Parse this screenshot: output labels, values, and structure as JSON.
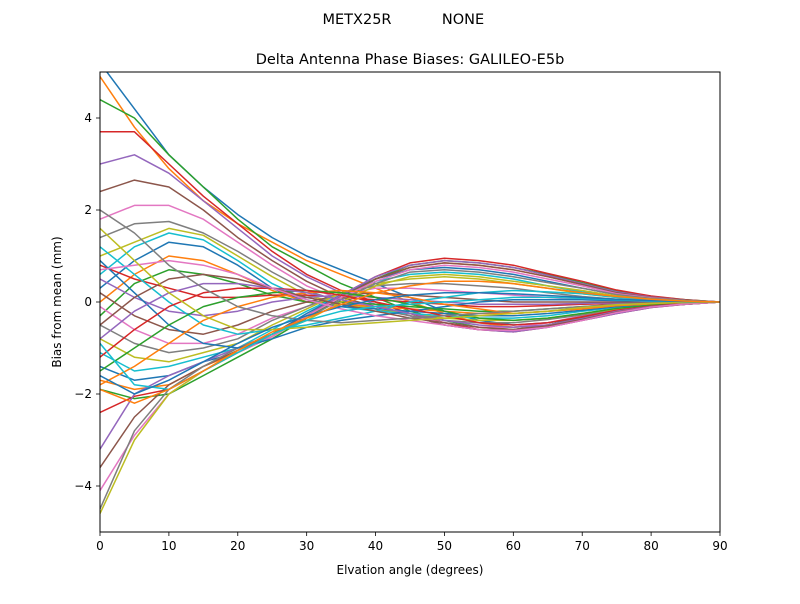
{
  "figure": {
    "suptitle_left": "METX25R",
    "suptitle_right": "NONE"
  },
  "chart_data": {
    "type": "line",
    "title": "Delta Antenna Phase Biases: GALILEO-E5b",
    "xlabel": "Elvation angle (degrees)",
    "ylabel": "Bias from mean (mm)",
    "xlim": [
      0,
      90
    ],
    "ylim": [
      -5,
      5
    ],
    "xticks": [
      0,
      10,
      20,
      30,
      40,
      50,
      60,
      70,
      80,
      90
    ],
    "yticks": [
      -4,
      -2,
      0,
      2,
      4
    ],
    "ytick_labels": [
      "−4",
      "−2",
      "0",
      "2",
      "4"
    ],
    "grid": false,
    "legend": "none",
    "colors": [
      "#1f77b4",
      "#ff7f0e",
      "#2ca02c",
      "#d62728",
      "#9467bd",
      "#8c564b",
      "#e377c2",
      "#7f7f7f",
      "#bcbd22",
      "#17becf"
    ],
    "x": [
      0,
      5,
      10,
      15,
      20,
      25,
      30,
      35,
      40,
      45,
      50,
      55,
      60,
      65,
      70,
      75,
      80,
      85,
      90
    ],
    "series": [
      {
        "values": [
          5.2,
          4.2,
          3.2,
          2.5,
          1.9,
          1.4,
          1.0,
          0.7,
          0.4,
          0.1,
          -0.2,
          -0.4,
          -0.5,
          -0.45,
          -0.35,
          -0.2,
          -0.1,
          -0.05,
          0.0
        ]
      },
      {
        "values": [
          4.9,
          3.8,
          2.9,
          2.2,
          1.7,
          1.3,
          0.9,
          0.6,
          0.3,
          0.0,
          -0.25,
          -0.45,
          -0.55,
          -0.5,
          -0.35,
          -0.2,
          -0.1,
          -0.05,
          0.0
        ]
      },
      {
        "values": [
          4.4,
          4.0,
          3.2,
          2.5,
          1.8,
          1.2,
          0.8,
          0.4,
          0.1,
          -0.2,
          -0.4,
          -0.55,
          -0.6,
          -0.5,
          -0.35,
          -0.2,
          -0.1,
          -0.05,
          0.0
        ]
      },
      {
        "values": [
          3.7,
          3.7,
          3.0,
          2.3,
          1.7,
          1.1,
          0.6,
          0.25,
          0.0,
          -0.25,
          -0.45,
          -0.6,
          -0.65,
          -0.55,
          -0.4,
          -0.25,
          -0.12,
          -0.05,
          0.0
        ]
      },
      {
        "values": [
          3.0,
          3.2,
          2.8,
          2.2,
          1.6,
          1.0,
          0.55,
          0.2,
          -0.05,
          -0.3,
          -0.5,
          -0.6,
          -0.65,
          -0.55,
          -0.4,
          -0.25,
          -0.12,
          -0.05,
          0.0
        ]
      },
      {
        "values": [
          2.4,
          2.65,
          2.5,
          2.0,
          1.4,
          0.9,
          0.45,
          0.1,
          -0.1,
          -0.3,
          -0.5,
          -0.6,
          -0.6,
          -0.5,
          -0.35,
          -0.2,
          -0.1,
          -0.05,
          0.0
        ]
      },
      {
        "values": [
          1.8,
          2.1,
          2.1,
          1.8,
          1.3,
          0.8,
          0.35,
          0.05,
          -0.15,
          -0.3,
          -0.45,
          -0.55,
          -0.55,
          -0.45,
          -0.3,
          -0.18,
          -0.1,
          -0.05,
          0.0
        ]
      },
      {
        "values": [
          1.4,
          1.7,
          1.75,
          1.5,
          1.1,
          0.65,
          0.25,
          0.0,
          -0.15,
          -0.3,
          -0.4,
          -0.45,
          -0.45,
          -0.38,
          -0.28,
          -0.15,
          -0.08,
          -0.03,
          0.0
        ]
      },
      {
        "values": [
          1.0,
          1.3,
          1.6,
          1.45,
          1.0,
          0.55,
          0.15,
          -0.05,
          -0.15,
          -0.25,
          -0.35,
          -0.4,
          -0.4,
          -0.35,
          -0.25,
          -0.15,
          -0.08,
          -0.03,
          0.0
        ]
      },
      {
        "values": [
          0.6,
          1.2,
          1.5,
          1.35,
          0.9,
          0.4,
          0.05,
          -0.1,
          -0.2,
          -0.25,
          -0.3,
          -0.35,
          -0.35,
          -0.3,
          -0.2,
          -0.12,
          -0.06,
          -0.02,
          0.0
        ]
      },
      {
        "values": [
          0.3,
          0.9,
          1.3,
          1.2,
          0.8,
          0.3,
          0.0,
          -0.1,
          -0.15,
          -0.2,
          -0.25,
          -0.3,
          -0.3,
          -0.25,
          -0.18,
          -0.1,
          -0.05,
          -0.02,
          0.0
        ]
      },
      {
        "values": [
          0.0,
          0.6,
          1.0,
          0.9,
          0.6,
          0.25,
          0.0,
          -0.05,
          -0.1,
          -0.15,
          -0.2,
          -0.25,
          -0.25,
          -0.2,
          -0.15,
          -0.08,
          -0.04,
          -0.02,
          0.0
        ]
      },
      {
        "values": [
          -0.3,
          0.4,
          0.7,
          0.6,
          0.4,
          0.15,
          0.0,
          0.0,
          -0.05,
          -0.1,
          -0.15,
          -0.2,
          -0.2,
          -0.15,
          -0.1,
          -0.06,
          -0.03,
          -0.01,
          0.0
        ]
      },
      {
        "values": [
          0.8,
          0.5,
          0.3,
          0.1,
          0.1,
          0.15,
          0.15,
          0.1,
          0.05,
          0.0,
          -0.05,
          -0.1,
          -0.1,
          -0.08,
          -0.05,
          -0.03,
          -0.02,
          -0.01,
          0.0
        ]
      },
      {
        "values": [
          0.5,
          0.1,
          -0.2,
          -0.3,
          -0.2,
          0.0,
          0.1,
          0.15,
          0.1,
          0.05,
          0.0,
          -0.05,
          -0.05,
          -0.05,
          -0.03,
          -0.02,
          -0.01,
          0.0,
          0.0
        ]
      },
      {
        "values": [
          0.2,
          -0.3,
          -0.6,
          -0.7,
          -0.5,
          -0.2,
          0.0,
          0.15,
          0.2,
          0.15,
          0.1,
          0.05,
          0.0,
          0.0,
          0.0,
          0.0,
          0.0,
          0.0,
          0.0
        ]
      },
      {
        "values": [
          -0.1,
          -0.6,
          -0.9,
          -0.9,
          -0.7,
          -0.35,
          -0.1,
          0.15,
          0.3,
          0.3,
          0.25,
          0.2,
          0.15,
          0.1,
          0.05,
          0.03,
          0.02,
          0.01,
          0.0
        ]
      },
      {
        "values": [
          -0.5,
          -0.9,
          -1.1,
          -1.0,
          -0.8,
          -0.4,
          -0.1,
          0.2,
          0.35,
          0.4,
          0.4,
          0.35,
          0.3,
          0.2,
          0.12,
          0.06,
          0.03,
          0.01,
          0.0
        ]
      },
      {
        "values": [
          -0.8,
          -1.2,
          -1.3,
          -1.1,
          -0.9,
          -0.5,
          -0.15,
          0.2,
          0.4,
          0.5,
          0.55,
          0.5,
          0.4,
          0.3,
          0.18,
          0.1,
          0.05,
          0.02,
          0.0
        ]
      },
      {
        "values": [
          -1.1,
          -1.5,
          -1.4,
          -1.2,
          -1.0,
          -0.6,
          -0.2,
          0.15,
          0.45,
          0.6,
          0.65,
          0.6,
          0.5,
          0.35,
          0.22,
          0.12,
          0.06,
          0.02,
          0.0
        ]
      },
      {
        "values": [
          -1.4,
          -1.7,
          -1.6,
          -1.3,
          -1.1,
          -0.7,
          -0.25,
          0.15,
          0.5,
          0.7,
          0.75,
          0.7,
          0.6,
          0.45,
          0.3,
          0.16,
          0.08,
          0.03,
          0.0
        ]
      },
      {
        "values": [
          -1.7,
          -1.9,
          -1.8,
          -1.4,
          -1.1,
          -0.75,
          -0.3,
          0.1,
          0.5,
          0.75,
          0.85,
          0.8,
          0.7,
          0.55,
          0.38,
          0.2,
          0.1,
          0.04,
          0.0
        ]
      },
      {
        "values": [
          -1.9,
          -2.1,
          -2.0,
          -1.6,
          -1.2,
          -0.8,
          -0.35,
          0.1,
          0.5,
          0.8,
          0.9,
          0.85,
          0.75,
          0.6,
          0.42,
          0.24,
          0.12,
          0.05,
          0.0
        ]
      },
      {
        "values": [
          -2.4,
          -2.05,
          -1.9,
          -1.5,
          -1.1,
          -0.75,
          -0.3,
          0.15,
          0.55,
          0.85,
          0.95,
          0.9,
          0.8,
          0.62,
          0.45,
          0.26,
          0.13,
          0.05,
          0.0
        ]
      },
      {
        "values": [
          -3.2,
          -2.0,
          -1.6,
          -1.3,
          -1.0,
          -0.7,
          -0.3,
          0.15,
          0.55,
          0.8,
          0.9,
          0.85,
          0.75,
          0.58,
          0.4,
          0.22,
          0.11,
          0.04,
          0.0
        ]
      },
      {
        "values": [
          -3.6,
          -2.5,
          -1.8,
          -1.4,
          -1.05,
          -0.7,
          -0.3,
          0.1,
          0.5,
          0.75,
          0.85,
          0.8,
          0.7,
          0.55,
          0.38,
          0.2,
          0.1,
          0.04,
          0.0
        ]
      },
      {
        "values": [
          -4.1,
          -2.9,
          -2.0,
          -1.5,
          -1.1,
          -0.75,
          -0.3,
          0.1,
          0.45,
          0.7,
          0.8,
          0.75,
          0.65,
          0.5,
          0.35,
          0.18,
          0.09,
          0.03,
          0.0
        ]
      },
      {
        "values": [
          -4.5,
          -2.8,
          -1.9,
          -1.4,
          -1.0,
          -0.7,
          -0.35,
          0.05,
          0.4,
          0.65,
          0.7,
          0.65,
          0.55,
          0.42,
          0.3,
          0.16,
          0.08,
          0.03,
          0.0
        ]
      },
      {
        "values": [
          -4.6,
          -3.0,
          -2.0,
          -1.5,
          -1.1,
          -0.7,
          -0.4,
          0.0,
          0.35,
          0.55,
          0.6,
          0.55,
          0.45,
          0.35,
          0.25,
          0.13,
          0.06,
          0.02,
          0.0
        ]
      },
      {
        "values": [
          1.2,
          0.6,
          0.0,
          -0.5,
          -0.7,
          -0.6,
          -0.5,
          -0.35,
          -0.2,
          0.0,
          0.1,
          0.2,
          0.25,
          0.22,
          0.18,
          0.1,
          0.05,
          0.02,
          0.0
        ]
      },
      {
        "values": [
          0.9,
          0.2,
          -0.5,
          -0.9,
          -1.0,
          -0.8,
          -0.55,
          -0.4,
          -0.3,
          -0.2,
          -0.1,
          0.0,
          0.05,
          0.05,
          0.05,
          0.03,
          0.02,
          0.01,
          0.0
        ]
      },
      {
        "values": [
          -1.8,
          -1.4,
          -0.9,
          -0.4,
          -0.1,
          0.1,
          0.2,
          0.25,
          0.2,
          0.1,
          -0.05,
          -0.15,
          -0.25,
          -0.2,
          -0.15,
          -0.08,
          -0.04,
          -0.02,
          0.0
        ]
      },
      {
        "values": [
          -1.5,
          -1.0,
          -0.5,
          -0.1,
          0.1,
          0.2,
          0.25,
          0.2,
          0.1,
          -0.05,
          -0.2,
          -0.35,
          -0.4,
          -0.35,
          -0.25,
          -0.14,
          -0.07,
          -0.03,
          0.0
        ]
      },
      {
        "values": [
          -1.2,
          -0.6,
          -0.1,
          0.2,
          0.3,
          0.3,
          0.25,
          0.15,
          0.0,
          -0.15,
          -0.3,
          -0.45,
          -0.5,
          -0.45,
          -0.32,
          -0.18,
          -0.09,
          -0.03,
          0.0
        ]
      },
      {
        "values": [
          -0.8,
          -0.2,
          0.2,
          0.4,
          0.4,
          0.3,
          0.2,
          0.05,
          -0.1,
          -0.25,
          -0.4,
          -0.5,
          -0.55,
          -0.5,
          -0.36,
          -0.2,
          -0.1,
          -0.04,
          0.0
        ]
      },
      {
        "values": [
          -0.5,
          0.1,
          0.5,
          0.6,
          0.5,
          0.3,
          0.1,
          -0.05,
          -0.2,
          -0.35,
          -0.45,
          -0.55,
          -0.6,
          -0.52,
          -0.38,
          -0.22,
          -0.11,
          -0.04,
          0.0
        ]
      },
      {
        "values": [
          0.7,
          0.8,
          0.9,
          0.8,
          0.6,
          0.3,
          0.05,
          -0.15,
          -0.3,
          -0.4,
          -0.5,
          -0.6,
          -0.62,
          -0.55,
          -0.4,
          -0.23,
          -0.11,
          -0.04,
          0.0
        ]
      },
      {
        "values": [
          2.0,
          1.5,
          0.8,
          0.3,
          -0.1,
          -0.3,
          -0.4,
          -0.45,
          -0.4,
          -0.35,
          -0.3,
          -0.25,
          -0.2,
          -0.15,
          -0.1,
          -0.05,
          -0.02,
          -0.01,
          0.0
        ]
      },
      {
        "values": [
          1.6,
          0.9,
          0.2,
          -0.3,
          -0.6,
          -0.6,
          -0.55,
          -0.5,
          -0.45,
          -0.4,
          -0.35,
          -0.3,
          -0.25,
          -0.2,
          -0.12,
          -0.06,
          -0.03,
          -0.01,
          0.0
        ]
      },
      {
        "values": [
          -0.9,
          -1.8,
          -1.9,
          -1.5,
          -1.1,
          -0.7,
          -0.4,
          -0.2,
          -0.1,
          -0.05,
          0.0,
          0.05,
          0.1,
          0.1,
          0.08,
          0.05,
          0.02,
          0.01,
          0.0
        ]
      },
      {
        "values": [
          -1.6,
          -2.0,
          -1.7,
          -1.3,
          -0.9,
          -0.55,
          -0.3,
          -0.1,
          0.05,
          0.15,
          0.2,
          0.2,
          0.18,
          0.14,
          0.1,
          0.06,
          0.03,
          0.01,
          0.0
        ]
      },
      {
        "values": [
          -1.9,
          -2.2,
          -1.9,
          -1.5,
          -1.05,
          -0.65,
          -0.35,
          -0.05,
          0.2,
          0.35,
          0.45,
          0.45,
          0.4,
          0.3,
          0.2,
          0.12,
          0.06,
          0.02,
          0.0
        ]
      }
    ]
  }
}
